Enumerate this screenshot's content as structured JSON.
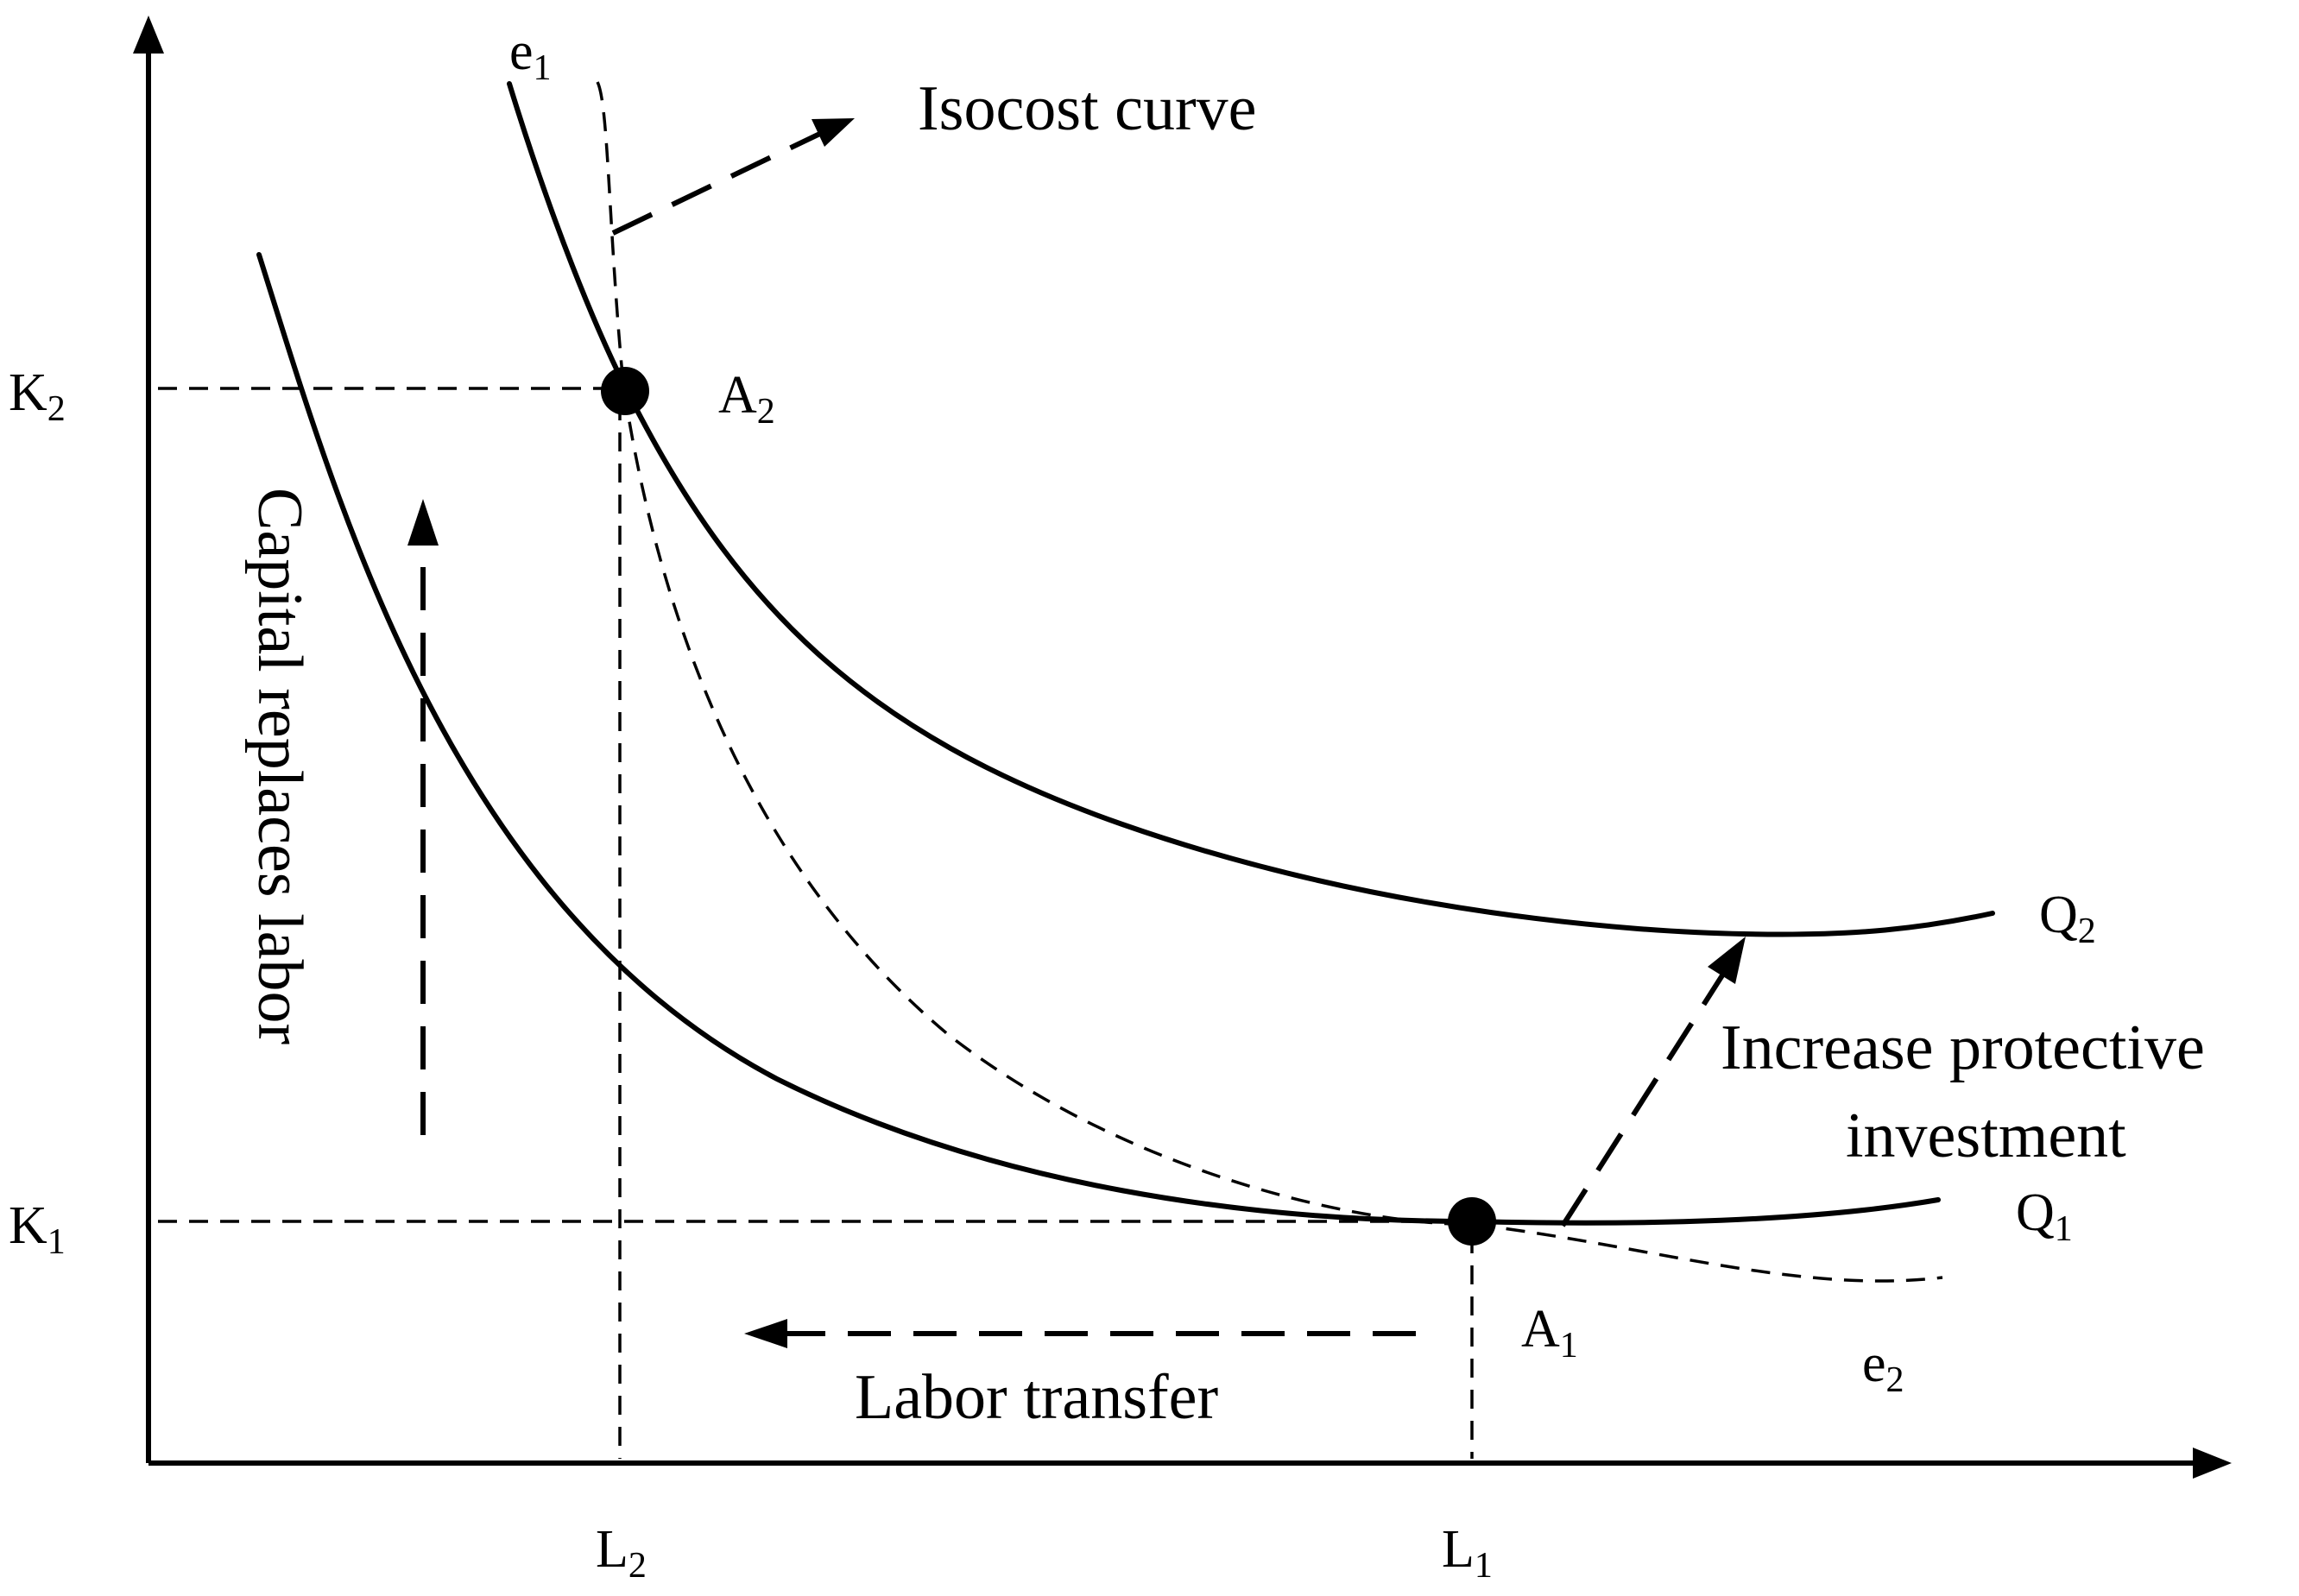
{
  "labels": {
    "isocost": "Isocost curve",
    "capital_replaces_labor": "Capital replaces labor",
    "increase_line1": "Increase protective",
    "increase_line2": "investment",
    "labor_transfer": "Labor transfer"
  },
  "points": {
    "A1": {
      "base": "A",
      "sub": "1"
    },
    "A2": {
      "base": "A",
      "sub": "2"
    }
  },
  "curves": {
    "Q1": {
      "base": "Q",
      "sub": "1"
    },
    "Q2": {
      "base": "Q",
      "sub": "2"
    },
    "e1": {
      "base": "e",
      "sub": "1"
    },
    "e2": {
      "base": "e",
      "sub": "2"
    }
  },
  "axis_labels": {
    "K1": {
      "base": "K",
      "sub": "1"
    },
    "K2": {
      "base": "K",
      "sub": "2"
    },
    "L1": {
      "base": "L",
      "sub": "1"
    },
    "L2": {
      "base": "L",
      "sub": "2"
    }
  }
}
